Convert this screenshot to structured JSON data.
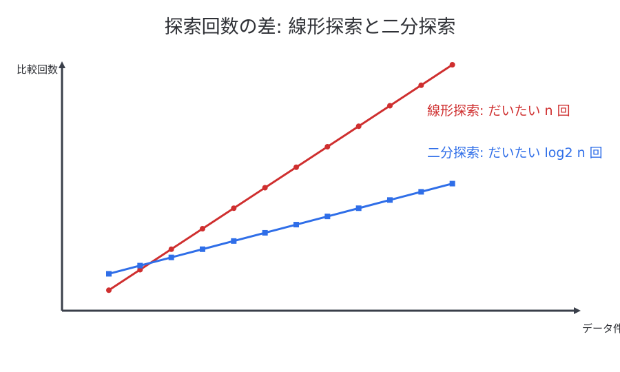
{
  "colors": {
    "axis": "#3a3f4a",
    "title": "#2f3136",
    "linear": "#cf2f2f",
    "binary": "#2f6ee8"
  },
  "chart_data": {
    "type": "line",
    "title": "探索回数の差: 線形探索と二分探索",
    "xlabel": "データ件数",
    "ylabel": "比較回数",
    "grid": false,
    "legend": "none",
    "annotations": [
      {
        "text": "線形探索: だいたい n 回",
        "color": "#cf2f2f"
      },
      {
        "text": "二分探索: だいたい log2 n 回",
        "color": "#2f6ee8"
      }
    ],
    "x": [
      1,
      2,
      3,
      4,
      5,
      6,
      7,
      8,
      9,
      10,
      11,
      12
    ],
    "xlim": [
      -0.5,
      16
    ],
    "ylim": [
      0,
      12
    ],
    "series": [
      {
        "name": "",
        "marker": "circle",
        "color": "#cf2f2f",
        "values": [
          1,
          2,
          3,
          4,
          5,
          6,
          7,
          8,
          9,
          10,
          11,
          12
        ]
      },
      {
        "name": "",
        "marker": "square",
        "color": "#2f6ee8",
        "values": [
          1.8,
          2.2,
          2.6,
          3.0,
          3.4,
          3.8,
          4.2,
          4.6,
          5.0,
          5.4,
          5.8,
          6.2
        ]
      }
    ]
  }
}
